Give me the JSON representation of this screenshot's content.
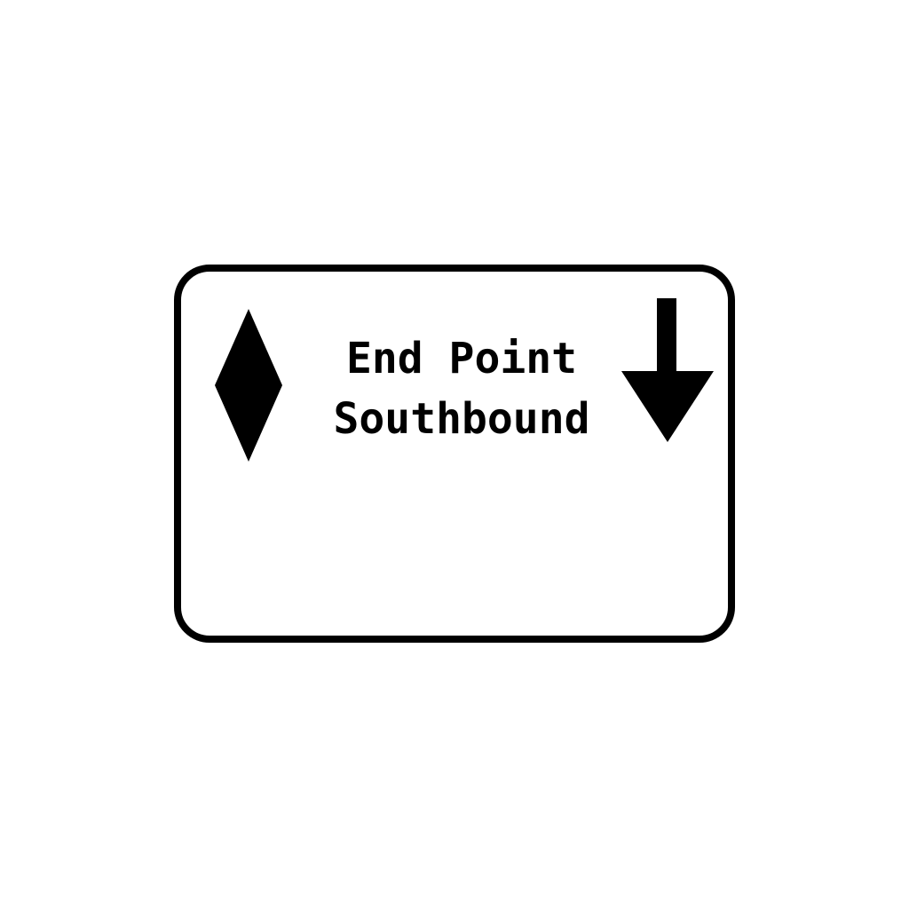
{
  "sign": {
    "line1": "End Point",
    "line2": "Southbound",
    "left_symbol": "diamond-icon",
    "right_symbol": "down-arrow-icon",
    "border_color": "#000000",
    "background_color": "#ffffff",
    "text_color": "#000000"
  }
}
